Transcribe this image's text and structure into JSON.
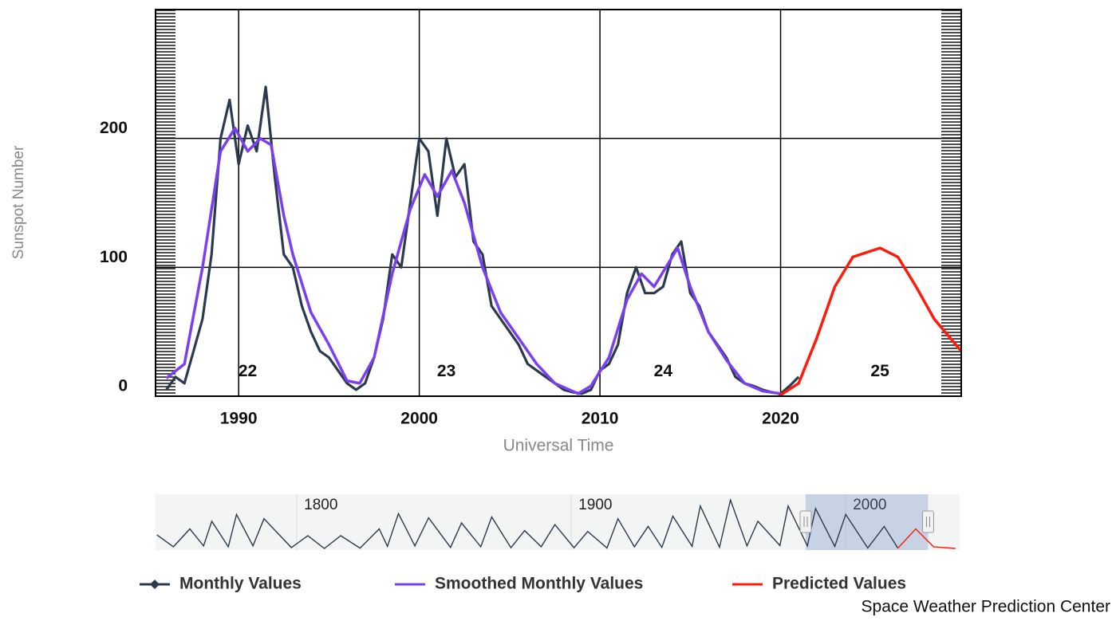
{
  "chart_data": {
    "type": "line",
    "y_label": "Sunspot Number",
    "x_label": "Universal Time",
    "xlim": [
      1985.4,
      2030
    ],
    "ylim": [
      0,
      300
    ],
    "xticks": [
      1990,
      2000,
      2010,
      2020
    ],
    "yticks": [
      0,
      100,
      200
    ],
    "grid": true,
    "legend": "bottom",
    "source": "Space Weather Prediction Center",
    "annotations": [
      {
        "label": "22",
        "x": 1990.5,
        "y": 19
      },
      {
        "label": "23",
        "x": 2001.5,
        "y": 19
      },
      {
        "label": "24",
        "x": 2013.5,
        "y": 19
      },
      {
        "label": "25",
        "x": 2025.5,
        "y": 19
      }
    ],
    "series": [
      {
        "name": "Monthly Values",
        "color": "#2b3a4e",
        "x": [
          1986.0,
          1986.5,
          1987.0,
          1987.5,
          1988.0,
          1988.5,
          1989.0,
          1989.5,
          1990.0,
          1990.5,
          1991.0,
          1991.5,
          1992.0,
          1992.5,
          1993.0,
          1993.5,
          1994.0,
          1994.5,
          1995.0,
          1995.5,
          1996.0,
          1996.5,
          1997.0,
          1997.5,
          1998.0,
          1998.5,
          1999.0,
          1999.5,
          2000.0,
          2000.5,
          2001.0,
          2001.5,
          2002.0,
          2002.5,
          2003.0,
          2003.5,
          2004.0,
          2004.5,
          2005.0,
          2005.5,
          2006.0,
          2006.5,
          2007.0,
          2007.5,
          2008.0,
          2008.5,
          2009.0,
          2009.5,
          2010.0,
          2010.5,
          2011.0,
          2011.5,
          2012.0,
          2012.5,
          2013.0,
          2013.5,
          2014.0,
          2014.5,
          2015.0,
          2015.5,
          2016.0,
          2016.5,
          2017.0,
          2017.5,
          2018.0,
          2018.5,
          2019.0,
          2019.5,
          2020.0,
          2020.5,
          2021.0
        ],
        "values": [
          5,
          15,
          10,
          35,
          60,
          110,
          200,
          230,
          180,
          210,
          190,
          240,
          170,
          110,
          100,
          70,
          50,
          35,
          30,
          20,
          10,
          5,
          10,
          30,
          60,
          110,
          100,
          150,
          200,
          190,
          140,
          200,
          170,
          180,
          120,
          110,
          70,
          60,
          50,
          40,
          25,
          20,
          15,
          10,
          5,
          3,
          2,
          5,
          20,
          25,
          40,
          80,
          100,
          80,
          80,
          85,
          110,
          120,
          80,
          70,
          50,
          40,
          30,
          15,
          10,
          8,
          5,
          3,
          2,
          8,
          15
        ]
      },
      {
        "name": "Smoothed Monthly Values",
        "color": "#7b3ff2",
        "x": [
          1986,
          1987,
          1988,
          1989,
          1989.8,
          1990.5,
          1991.2,
          1991.8,
          1992.5,
          1993,
          1994,
          1995,
          1996,
          1996.7,
          1997.5,
          1998.5,
          1999.5,
          2000.3,
          2001,
          2001.8,
          2002.5,
          2003.5,
          2004.5,
          2005.5,
          2006.5,
          2007.5,
          2008.8,
          2009.5,
          2010.5,
          2011.5,
          2012.3,
          2013,
          2014.3,
          2015,
          2016,
          2017,
          2018,
          2019,
          2020
        ],
        "values": [
          14,
          25,
          100,
          190,
          208,
          190,
          200,
          195,
          140,
          110,
          65,
          40,
          12,
          10,
          30,
          95,
          145,
          172,
          155,
          175,
          150,
          100,
          65,
          45,
          25,
          10,
          2,
          8,
          30,
          75,
          95,
          85,
          115,
          85,
          50,
          28,
          10,
          4,
          2
        ]
      },
      {
        "name": "Predicted Values",
        "color": "#ff1a0a",
        "x": [
          2019.9,
          2021,
          2022,
          2023,
          2024,
          2025.5,
          2026.5,
          2027.5,
          2028.5,
          2030
        ],
        "values": [
          0,
          10,
          45,
          85,
          108,
          115,
          108,
          85,
          60,
          35
        ]
      }
    ],
    "navigator": {
      "xlim": [
        1748.5,
        2041.5
      ],
      "ylim": [
        0,
        300
      ],
      "xticks": [
        1800,
        1900,
        2000
      ],
      "selection": [
        1985.4,
        2030
      ],
      "series": [
        {
          "color": "#2b3a4e",
          "x": [
            1749,
            1755,
            1761,
            1766,
            1769,
            1775,
            1778,
            1784,
            1788,
            1798,
            1804,
            1810,
            1816,
            1823,
            1830,
            1833,
            1837,
            1843,
            1848,
            1856,
            1860,
            1867,
            1871,
            1878,
            1883,
            1889,
            1894,
            1901,
            1906,
            1913,
            1917,
            1923,
            1928,
            1933,
            1937,
            1944,
            1947,
            1954,
            1958,
            1964,
            1968,
            1976,
            1979,
            1986,
            1989,
            1996,
            2000,
            2008,
            2014,
            2019
          ],
          "values": [
            80,
            10,
            115,
            15,
            160,
            10,
            200,
            15,
            175,
            5,
            75,
            0,
            75,
            2,
            115,
            12,
            205,
            15,
            180,
            6,
            150,
            10,
            185,
            4,
            105,
            10,
            140,
            4,
            100,
            3,
            175,
            10,
            130,
            6,
            190,
            12,
            250,
            7,
            285,
            15,
            160,
            17,
            250,
            15,
            235,
            12,
            200,
            3,
            130,
            2
          ]
        },
        {
          "color": "#ff1a0a",
          "x": [
            2019,
            2025.5,
            2032,
            2040
          ],
          "values": [
            2,
            115,
            10,
            0
          ]
        }
      ]
    }
  }
}
